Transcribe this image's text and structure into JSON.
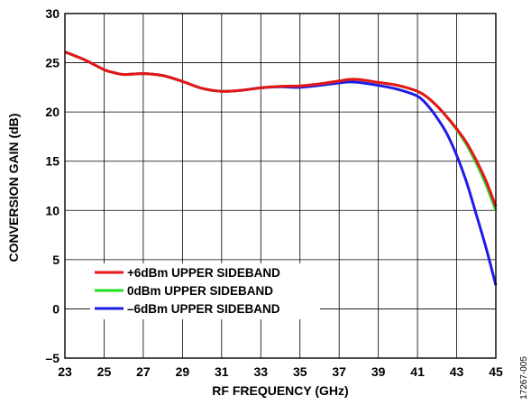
{
  "chart_data": {
    "type": "line",
    "title": "",
    "xlabel": "RF FREQUENCY (GHz)",
    "ylabel": "CONVERSION GAIN (dB)",
    "xlim": [
      23,
      45
    ],
    "ylim": [
      -5,
      30
    ],
    "xticks": [
      23,
      25,
      27,
      29,
      31,
      33,
      35,
      37,
      39,
      41,
      43,
      45
    ],
    "yticks": [
      -5,
      0,
      5,
      10,
      15,
      20,
      25,
      30
    ],
    "ytick_labels": [
      "–5",
      "0",
      "5",
      "10",
      "15",
      "20",
      "25",
      "30"
    ],
    "grid": true,
    "legend_position": "lower-left",
    "figure_id": "17267-005",
    "series": [
      {
        "name": "+6dBm UPPER SIDEBAND",
        "color": "#e8141a",
        "x": [
          23,
          24,
          25,
          25.5,
          26,
          27,
          28,
          29,
          30,
          31,
          32,
          33,
          34,
          35,
          36,
          37,
          37.5,
          38,
          39,
          40,
          41,
          41.5,
          42,
          42.5,
          43,
          43.5,
          44,
          44.5,
          45
        ],
        "y": [
          26.1,
          25.3,
          24.3,
          24.0,
          23.8,
          23.9,
          23.7,
          23.1,
          22.4,
          22.1,
          22.2,
          22.45,
          22.6,
          22.65,
          22.85,
          23.15,
          23.3,
          23.3,
          23.0,
          22.7,
          22.1,
          21.5,
          20.6,
          19.5,
          18.3,
          16.9,
          15.1,
          13.0,
          10.4
        ]
      },
      {
        "name": "0dBm UPPER SIDEBAND",
        "color": "#22dd22",
        "x": [
          23,
          24,
          25,
          25.5,
          26,
          27,
          28,
          29,
          30,
          31,
          32,
          33,
          34,
          35,
          36,
          37,
          37.5,
          38,
          39,
          40,
          41,
          41.5,
          42,
          42.5,
          43,
          43.5,
          44,
          44.5,
          45
        ],
        "y": [
          26.1,
          25.3,
          24.3,
          24.0,
          23.8,
          23.9,
          23.7,
          23.1,
          22.4,
          22.1,
          22.2,
          22.45,
          22.6,
          22.65,
          22.85,
          23.15,
          23.3,
          23.3,
          23.0,
          22.7,
          22.1,
          21.5,
          20.6,
          19.5,
          18.2,
          16.7,
          14.8,
          12.6,
          10.0
        ]
      },
      {
        "name": "–6dBm UPPER SIDEBAND",
        "color": "#1c1ce8",
        "x": [
          23,
          24,
          25,
          25.5,
          26,
          27,
          28,
          29,
          30,
          31,
          32,
          33,
          34,
          35,
          36,
          37,
          37.5,
          38,
          39,
          40,
          41,
          41.5,
          42,
          42.5,
          43,
          43.5,
          44,
          44.5,
          45
        ],
        "y": [
          26.1,
          25.3,
          24.3,
          24.0,
          23.8,
          23.9,
          23.7,
          23.1,
          22.4,
          22.1,
          22.2,
          22.45,
          22.55,
          22.5,
          22.7,
          22.95,
          23.05,
          23.0,
          22.7,
          22.3,
          21.6,
          20.7,
          19.4,
          17.8,
          15.6,
          12.9,
          9.6,
          6.2,
          2.4
        ]
      }
    ]
  }
}
